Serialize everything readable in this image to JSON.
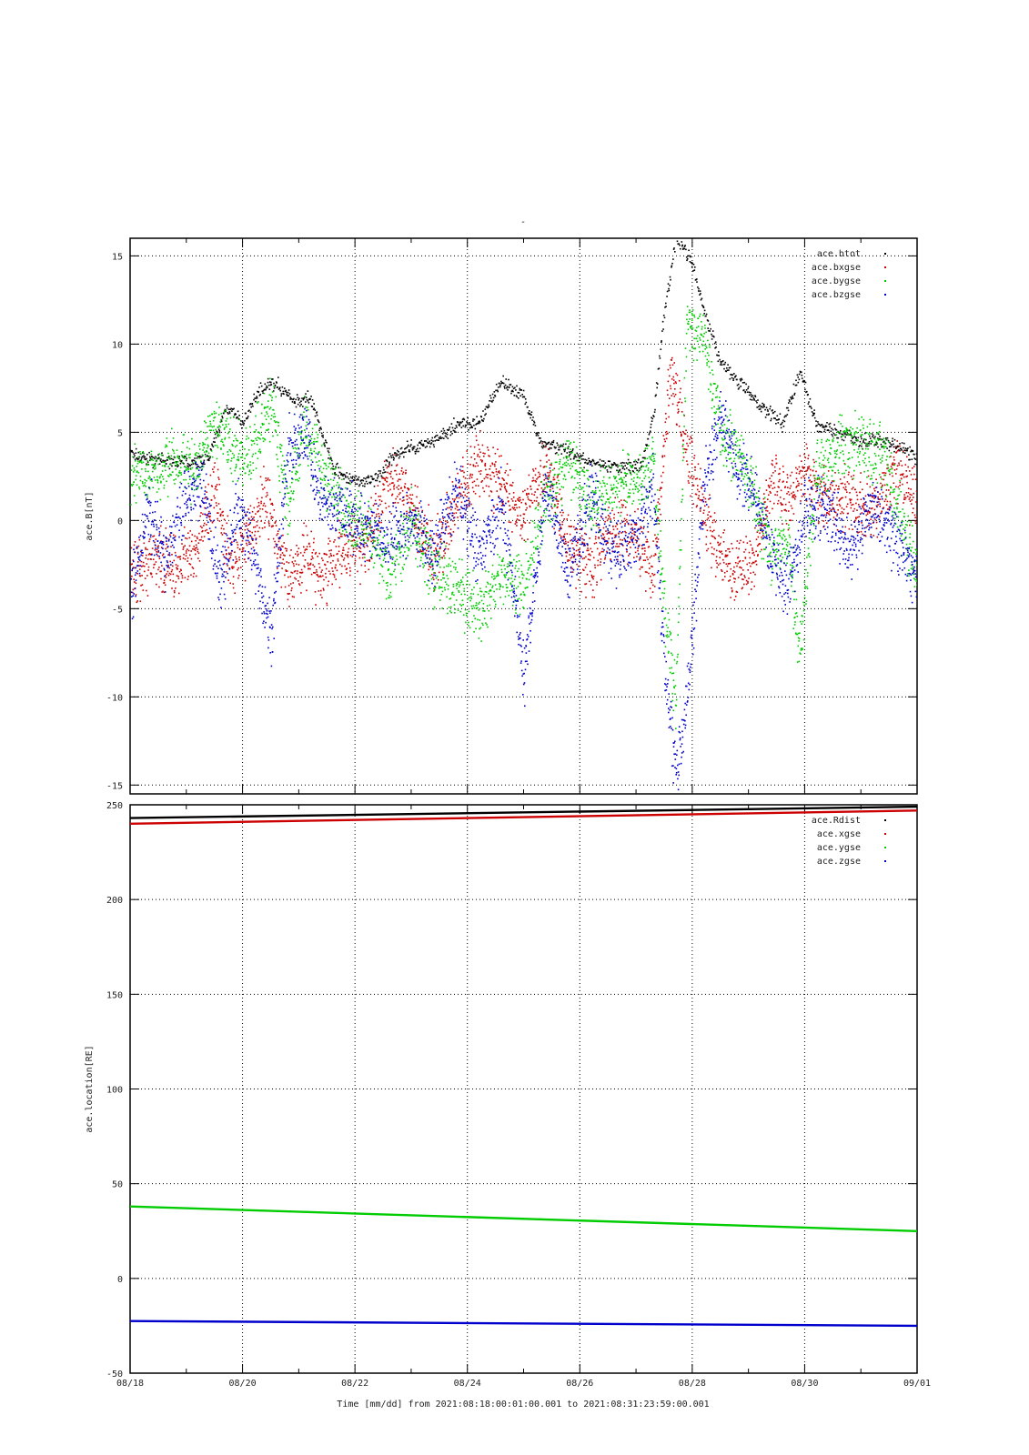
{
  "title_mark": "-",
  "xlabel": "Time [mm/dd]  from 2021:08:18:00:01:00.001  to  2021:08:31:23:59:00.001",
  "chart_data": [
    {
      "type": "scatter",
      "ylabel": "ace.B[nT]",
      "ylim": [
        -15.5,
        16
      ],
      "yticks": [
        15,
        10,
        5,
        0,
        -5,
        -10,
        -15
      ],
      "xlim": [
        "08/18",
        "09/01"
      ],
      "xticks": [
        "08/18",
        "08/20",
        "08/22",
        "08/24",
        "08/26",
        "08/28",
        "08/30",
        "09/01"
      ],
      "grid": true,
      "legend_position": "top-right",
      "series": [
        {
          "name": "ace.btot",
          "color": "#000000",
          "x": [
            18.0,
            18.5,
            19.0,
            19.4,
            19.7,
            20.0,
            20.3,
            20.6,
            20.9,
            21.2,
            21.6,
            22.0,
            22.4,
            22.7,
            23.0,
            23.4,
            23.8,
            24.2,
            24.6,
            25.0,
            25.3,
            25.6,
            26.0,
            26.4,
            26.8,
            27.1,
            27.3,
            27.5,
            27.7,
            27.85,
            28.0,
            28.2,
            28.5,
            28.8,
            29.2,
            29.6,
            29.9,
            30.2,
            30.6,
            31.0,
            31.4,
            31.8,
            32.0
          ],
          "y": [
            3.8,
            3.4,
            3.3,
            3.6,
            6.5,
            5.5,
            7.5,
            7.8,
            6.8,
            7.0,
            3.0,
            2.2,
            2.5,
            3.8,
            4.2,
            4.5,
            5.5,
            5.5,
            8.0,
            7.0,
            4.5,
            4.2,
            3.5,
            3.2,
            3.0,
            3.3,
            6.0,
            12.0,
            16.0,
            15.5,
            14.5,
            12.0,
            9.0,
            8.0,
            6.5,
            5.5,
            8.5,
            5.5,
            5.0,
            4.5,
            4.6,
            4.0,
            3.5
          ]
        },
        {
          "name": "ace.bxgse",
          "color": "#cc0000",
          "x": [
            18.0,
            18.4,
            18.8,
            19.2,
            19.5,
            19.8,
            20.1,
            20.4,
            20.8,
            21.1,
            21.4,
            21.8,
            22.2,
            22.6,
            23.0,
            23.4,
            23.8,
            24.2,
            24.6,
            25.0,
            25.4,
            25.8,
            26.2,
            26.6,
            27.0,
            27.3,
            27.6,
            27.9,
            28.2,
            28.5,
            28.8,
            29.1,
            29.4,
            29.7,
            30.0,
            30.4,
            30.8,
            31.2,
            31.6,
            32.0
          ],
          "y": [
            -3.0,
            -2.0,
            -2.5,
            -1.5,
            2.0,
            -3.0,
            -1.0,
            1.5,
            -3.5,
            -2.0,
            -3.0,
            -1.5,
            -1.5,
            2.5,
            1.0,
            -2.0,
            1.0,
            3.5,
            2.0,
            0.5,
            3.0,
            -1.5,
            -2.5,
            0.0,
            -1.0,
            -3.0,
            8.5,
            4.0,
            0.5,
            -2.0,
            -3.0,
            -2.0,
            2.5,
            1.0,
            3.0,
            1.0,
            1.5,
            0.5,
            3.0,
            1.0
          ]
        },
        {
          "name": "ace.bygse",
          "color": "#00cc00",
          "x": [
            18.0,
            18.4,
            18.8,
            19.2,
            19.5,
            19.8,
            20.1,
            20.5,
            20.8,
            21.1,
            21.4,
            21.8,
            22.2,
            22.6,
            23.0,
            23.4,
            23.8,
            24.2,
            24.6,
            25.0,
            25.4,
            25.8,
            26.2,
            26.6,
            27.0,
            27.3,
            27.5,
            27.7,
            27.9,
            28.2,
            28.5,
            28.8,
            29.1,
            29.4,
            29.7,
            29.9,
            30.2,
            30.6,
            31.0,
            31.4,
            31.8,
            32.0
          ],
          "y": [
            2.5,
            3.0,
            3.5,
            3.0,
            5.5,
            4.0,
            3.5,
            6.5,
            1.0,
            5.5,
            3.0,
            0.5,
            -0.5,
            -3.0,
            0.0,
            -3.0,
            -4.0,
            -5.0,
            -3.0,
            -3.5,
            1.5,
            3.5,
            1.0,
            2.0,
            2.0,
            3.0,
            -5.0,
            -10.0,
            11.5,
            10.5,
            5.0,
            4.0,
            1.5,
            -2.0,
            -1.0,
            -8.0,
            3.0,
            4.0,
            4.5,
            3.5,
            -1.0,
            -3.0
          ]
        },
        {
          "name": "ace.bzgse",
          "color": "#0000cc",
          "x": [
            18.0,
            18.3,
            18.6,
            19.0,
            19.3,
            19.6,
            19.9,
            20.2,
            20.5,
            20.8,
            21.1,
            21.4,
            21.8,
            22.2,
            22.6,
            23.0,
            23.4,
            23.8,
            24.2,
            24.6,
            25.0,
            25.4,
            25.8,
            26.2,
            26.6,
            27.0,
            27.3,
            27.5,
            27.7,
            27.9,
            28.2,
            28.5,
            28.8,
            29.1,
            29.4,
            29.7,
            30.0,
            30.4,
            30.8,
            31.2,
            31.6,
            32.0
          ],
          "y": [
            -4.5,
            1.0,
            -2.0,
            1.5,
            2.0,
            -4.0,
            1.0,
            -2.0,
            -6.5,
            4.0,
            5.0,
            1.0,
            0.5,
            -0.5,
            -1.0,
            0.0,
            -2.0,
            2.0,
            -2.0,
            1.0,
            -8.5,
            2.0,
            -3.0,
            1.5,
            -2.0,
            -1.0,
            2.0,
            -8.0,
            -14.5,
            -10.0,
            2.0,
            6.0,
            3.0,
            1.5,
            -2.0,
            -3.5,
            0.5,
            1.0,
            -2.0,
            1.0,
            -1.0,
            -3.0
          ]
        }
      ]
    },
    {
      "type": "line",
      "ylabel": "ace.location[RE]",
      "ylim": [
        -50,
        250
      ],
      "yticks": [
        250,
        200,
        150,
        100,
        50,
        0,
        -50
      ],
      "xlim": [
        "08/18",
        "09/01"
      ],
      "xticks": [
        "08/18",
        "08/20",
        "08/22",
        "08/24",
        "08/26",
        "08/28",
        "08/30",
        "09/01"
      ],
      "grid": true,
      "legend_position": "top-right",
      "series": [
        {
          "name": "ace.Rdist",
          "color": "#000000",
          "x": [
            18,
            32
          ],
          "y": [
            243,
            249
          ]
        },
        {
          "name": "ace.xgse",
          "color": "#cc0000",
          "x": [
            18,
            32
          ],
          "y": [
            240,
            247
          ]
        },
        {
          "name": "ace.ygse",
          "color": "#00cc00",
          "x": [
            18,
            32
          ],
          "y": [
            38,
            25
          ]
        },
        {
          "name": "ace.zgse",
          "color": "#0000cc",
          "x": [
            18,
            32
          ],
          "y": [
            -22.5,
            -25
          ]
        }
      ]
    }
  ]
}
